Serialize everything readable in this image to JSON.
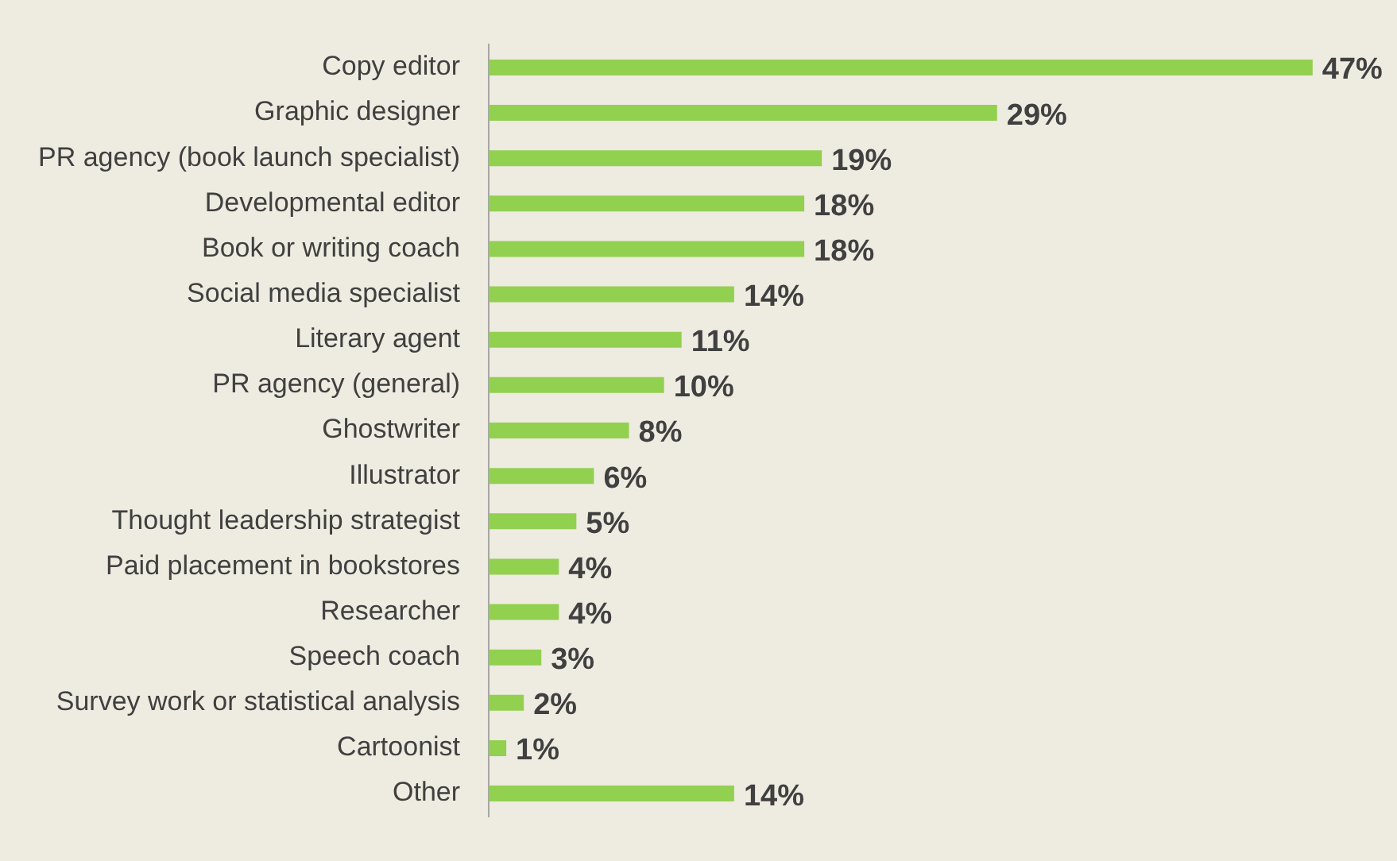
{
  "chart_data": {
    "type": "bar",
    "orientation": "horizontal",
    "categories": [
      "Copy editor",
      "Graphic designer",
      "PR agency (book launch specialist)",
      "Developmental editor",
      "Book or writing coach",
      "Social media specialist",
      "Literary agent",
      "PR agency (general)",
      "Ghostwriter",
      "Illustrator",
      "Thought leadership strategist",
      "Paid placement in bookstores",
      "Researcher",
      "Speech coach",
      "Survey work or statistical analysis",
      "Cartoonist",
      "Other"
    ],
    "values": [
      47,
      29,
      19,
      18,
      18,
      14,
      11,
      10,
      8,
      6,
      5,
      4,
      4,
      3,
      2,
      1,
      14
    ],
    "value_labels": [
      "47%",
      "29%",
      "19%",
      "18%",
      "18%",
      "14%",
      "11%",
      "10%",
      "8%",
      "6%",
      "5%",
      "4%",
      "4%",
      "3%",
      "2%",
      "1%",
      "14%"
    ],
    "color": "#92d050",
    "tick_labels": "y",
    "grid": false,
    "legend": false
  }
}
